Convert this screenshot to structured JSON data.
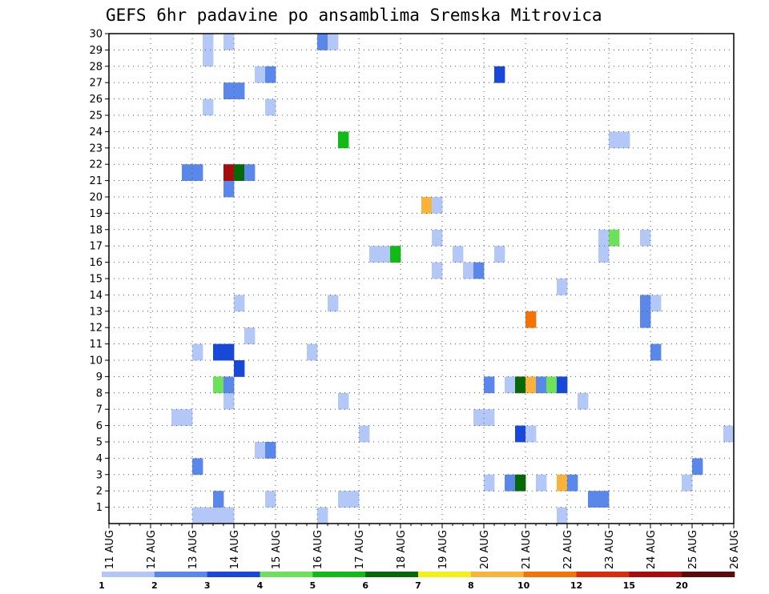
{
  "chart_data": {
    "type": "heatmap",
    "title": "GEFS 6hr padavine po ansamblima Sremska Mitrovica",
    "x_tick_labels": [
      "11 AUG",
      "12 AUG",
      "13 AUG",
      "14 AUG",
      "15 AUG",
      "16 AUG",
      "17 AUG",
      "18 AUG",
      "19 AUG",
      "20 AUG",
      "21 AUG",
      "22 AUG",
      "23 AUG",
      "24 AUG",
      "25 AUG",
      "26 AUG"
    ],
    "y_tick_labels": [
      "1",
      "2",
      "3",
      "4",
      "5",
      "6",
      "7",
      "8",
      "9",
      "10",
      "11",
      "12",
      "13",
      "14",
      "15",
      "16",
      "17",
      "18",
      "19",
      "20",
      "21",
      "22",
      "23",
      "24",
      "25",
      "26",
      "27",
      "28",
      "29",
      "30"
    ],
    "x_unit": "day offset from 11 AUG 00Z, 6-hour steps",
    "xlim": [
      0,
      15
    ],
    "ylim": [
      0,
      30
    ],
    "grid": true,
    "legend": {
      "placement": "bottom",
      "labels": [
        "1",
        "2",
        "3",
        "4",
        "5",
        "6",
        "7",
        "8",
        "10",
        "12",
        "15",
        "20"
      ],
      "colors": [
        "#b3c8f7",
        "#5a87ea",
        "#1748d8",
        "#6de15a",
        "#0fbb14",
        "#066806",
        "#f2f015",
        "#f9b33a",
        "#f27408",
        "#dc2a0d",
        "#a80d0d",
        "#5c0a0a"
      ]
    },
    "cells": [
      {
        "x": 2.0,
        "y": 0,
        "bin": 0
      },
      {
        "x": 2.25,
        "y": 0,
        "bin": 0
      },
      {
        "x": 2.5,
        "y": 0,
        "bin": 0
      },
      {
        "x": 2.75,
        "y": 0,
        "bin": 0
      },
      {
        "x": 5.0,
        "y": 0,
        "bin": 0
      },
      {
        "x": 10.75,
        "y": 0,
        "bin": 0
      },
      {
        "x": 2.5,
        "y": 1,
        "bin": 1
      },
      {
        "x": 3.75,
        "y": 1,
        "bin": 0
      },
      {
        "x": 5.5,
        "y": 1,
        "bin": 0
      },
      {
        "x": 5.75,
        "y": 1,
        "bin": 0
      },
      {
        "x": 11.5,
        "y": 1,
        "bin": 1
      },
      {
        "x": 11.75,
        "y": 1,
        "bin": 1
      },
      {
        "x": 9.0,
        "y": 2,
        "bin": 0
      },
      {
        "x": 9.5,
        "y": 2,
        "bin": 1
      },
      {
        "x": 9.75,
        "y": 2,
        "bin": 5
      },
      {
        "x": 10.25,
        "y": 2,
        "bin": 0
      },
      {
        "x": 10.75,
        "y": 2,
        "bin": 7
      },
      {
        "x": 11.0,
        "y": 2,
        "bin": 1
      },
      {
        "x": 13.75,
        "y": 2,
        "bin": 0
      },
      {
        "x": 2.0,
        "y": 3,
        "bin": 1
      },
      {
        "x": 14.0,
        "y": 3,
        "bin": 1
      },
      {
        "x": 3.5,
        "y": 4,
        "bin": 0
      },
      {
        "x": 3.75,
        "y": 4,
        "bin": 1
      },
      {
        "x": 6.0,
        "y": 5,
        "bin": 0
      },
      {
        "x": 9.75,
        "y": 5,
        "bin": 2
      },
      {
        "x": 10.0,
        "y": 5,
        "bin": 0
      },
      {
        "x": 14.75,
        "y": 5,
        "bin": 0
      },
      {
        "x": 1.5,
        "y": 6,
        "bin": 0
      },
      {
        "x": 1.75,
        "y": 6,
        "bin": 0
      },
      {
        "x": 8.75,
        "y": 6,
        "bin": 0
      },
      {
        "x": 9.0,
        "y": 6,
        "bin": 0
      },
      {
        "x": 2.75,
        "y": 7,
        "bin": 0
      },
      {
        "x": 5.5,
        "y": 7,
        "bin": 0
      },
      {
        "x": 11.25,
        "y": 7,
        "bin": 0
      },
      {
        "x": 2.5,
        "y": 8,
        "bin": 3
      },
      {
        "x": 2.75,
        "y": 8,
        "bin": 1
      },
      {
        "x": 9.0,
        "y": 8,
        "bin": 1
      },
      {
        "x": 9.5,
        "y": 8,
        "bin": 0
      },
      {
        "x": 9.75,
        "y": 8,
        "bin": 5
      },
      {
        "x": 10.0,
        "y": 8,
        "bin": 7
      },
      {
        "x": 10.25,
        "y": 8,
        "bin": 1
      },
      {
        "x": 10.5,
        "y": 8,
        "bin": 3
      },
      {
        "x": 10.75,
        "y": 8,
        "bin": 2
      },
      {
        "x": 3.0,
        "y": 9,
        "bin": 2
      },
      {
        "x": 2.0,
        "y": 10,
        "bin": 0
      },
      {
        "x": 2.5,
        "y": 10,
        "bin": 2
      },
      {
        "x": 2.75,
        "y": 10,
        "bin": 2
      },
      {
        "x": 4.75,
        "y": 10,
        "bin": 0
      },
      {
        "x": 13.0,
        "y": 10,
        "bin": 1
      },
      {
        "x": 3.25,
        "y": 11,
        "bin": 0
      },
      {
        "x": 10.0,
        "y": 12,
        "bin": 8
      },
      {
        "x": 12.75,
        "y": 12,
        "bin": 1
      },
      {
        "x": 3.0,
        "y": 13,
        "bin": 0
      },
      {
        "x": 5.25,
        "y": 13,
        "bin": 0
      },
      {
        "x": 12.75,
        "y": 13,
        "bin": 1
      },
      {
        "x": 13.0,
        "y": 13,
        "bin": 0
      },
      {
        "x": 10.75,
        "y": 14,
        "bin": 0
      },
      {
        "x": 7.75,
        "y": 15,
        "bin": 0
      },
      {
        "x": 8.5,
        "y": 15,
        "bin": 0
      },
      {
        "x": 8.75,
        "y": 15,
        "bin": 1
      },
      {
        "x": 6.25,
        "y": 16,
        "bin": 0
      },
      {
        "x": 6.5,
        "y": 16,
        "bin": 0
      },
      {
        "x": 6.75,
        "y": 16,
        "bin": 4
      },
      {
        "x": 8.25,
        "y": 16,
        "bin": 0
      },
      {
        "x": 9.25,
        "y": 16,
        "bin": 0
      },
      {
        "x": 11.75,
        "y": 16,
        "bin": 0
      },
      {
        "x": 7.75,
        "y": 17,
        "bin": 0
      },
      {
        "x": 11.75,
        "y": 17,
        "bin": 0
      },
      {
        "x": 12.0,
        "y": 17,
        "bin": 3
      },
      {
        "x": 12.75,
        "y": 17,
        "bin": 0
      },
      {
        "x": 7.5,
        "y": 19,
        "bin": 7
      },
      {
        "x": 7.75,
        "y": 19,
        "bin": 0
      },
      {
        "x": 2.75,
        "y": 20,
        "bin": 1
      },
      {
        "x": 1.75,
        "y": 21,
        "bin": 1
      },
      {
        "x": 2.0,
        "y": 21,
        "bin": 1
      },
      {
        "x": 2.75,
        "y": 21,
        "bin": 10
      },
      {
        "x": 3.0,
        "y": 21,
        "bin": 5
      },
      {
        "x": 3.25,
        "y": 21,
        "bin": 1
      },
      {
        "x": 5.5,
        "y": 23,
        "bin": 4
      },
      {
        "x": 12.0,
        "y": 23,
        "bin": 0
      },
      {
        "x": 12.25,
        "y": 23,
        "bin": 0
      },
      {
        "x": 2.25,
        "y": 25,
        "bin": 0
      },
      {
        "x": 3.75,
        "y": 25,
        "bin": 0
      },
      {
        "x": 2.75,
        "y": 26,
        "bin": 1
      },
      {
        "x": 3.0,
        "y": 26,
        "bin": 1
      },
      {
        "x": 3.5,
        "y": 27,
        "bin": 0
      },
      {
        "x": 3.75,
        "y": 27,
        "bin": 1
      },
      {
        "x": 9.25,
        "y": 27,
        "bin": 2
      },
      {
        "x": 2.25,
        "y": 28,
        "bin": 0
      },
      {
        "x": 2.25,
        "y": 29,
        "bin": 0
      },
      {
        "x": 2.75,
        "y": 29,
        "bin": 0
      },
      {
        "x": 5.0,
        "y": 29,
        "bin": 1
      },
      {
        "x": 5.25,
        "y": 29,
        "bin": 0
      }
    ]
  }
}
